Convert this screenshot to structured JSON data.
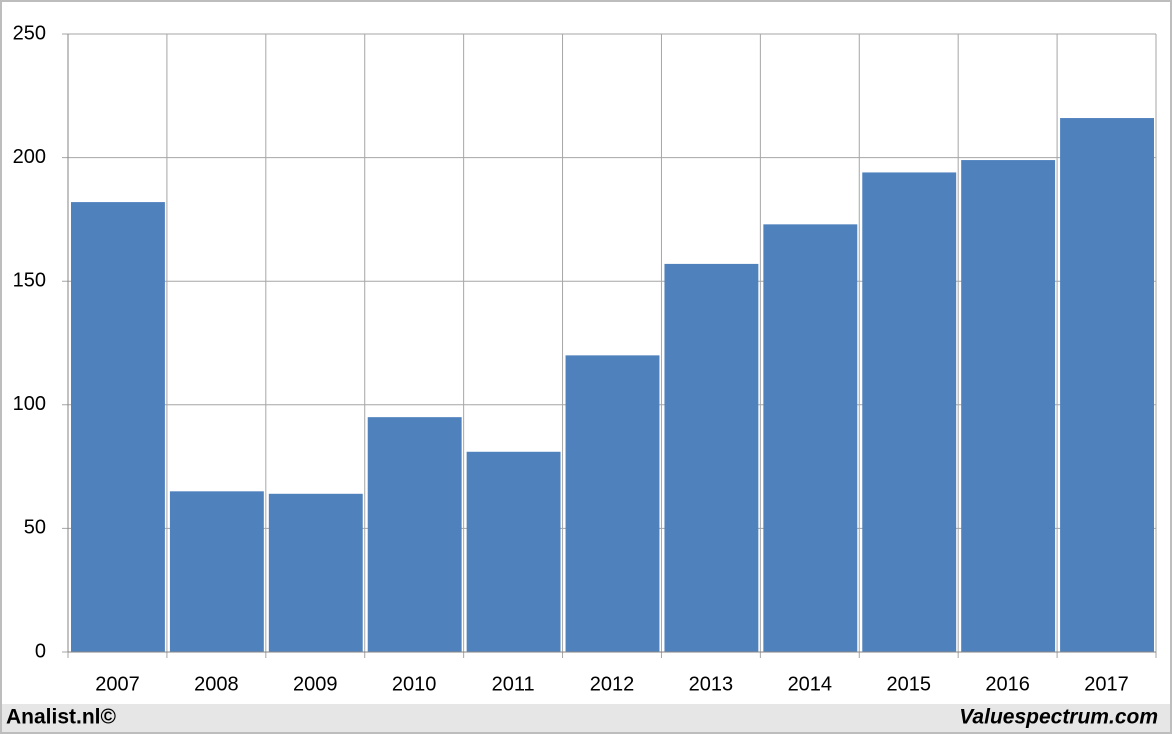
{
  "chart_data": {
    "type": "bar",
    "categories": [
      "2007",
      "2008",
      "2009",
      "2010",
      "2011",
      "2012",
      "2013",
      "2014",
      "2015",
      "2016",
      "2017"
    ],
    "values": [
      182,
      65,
      64,
      95,
      81,
      120,
      157,
      173,
      194,
      199,
      216
    ],
    "color": "#4f81bd",
    "ylim": [
      0,
      250
    ],
    "yticks": [
      0,
      50,
      100,
      150,
      200,
      250
    ],
    "grid": true
  },
  "footer": {
    "left": "Analist.nl©",
    "right": "Valuespectrum.com"
  }
}
